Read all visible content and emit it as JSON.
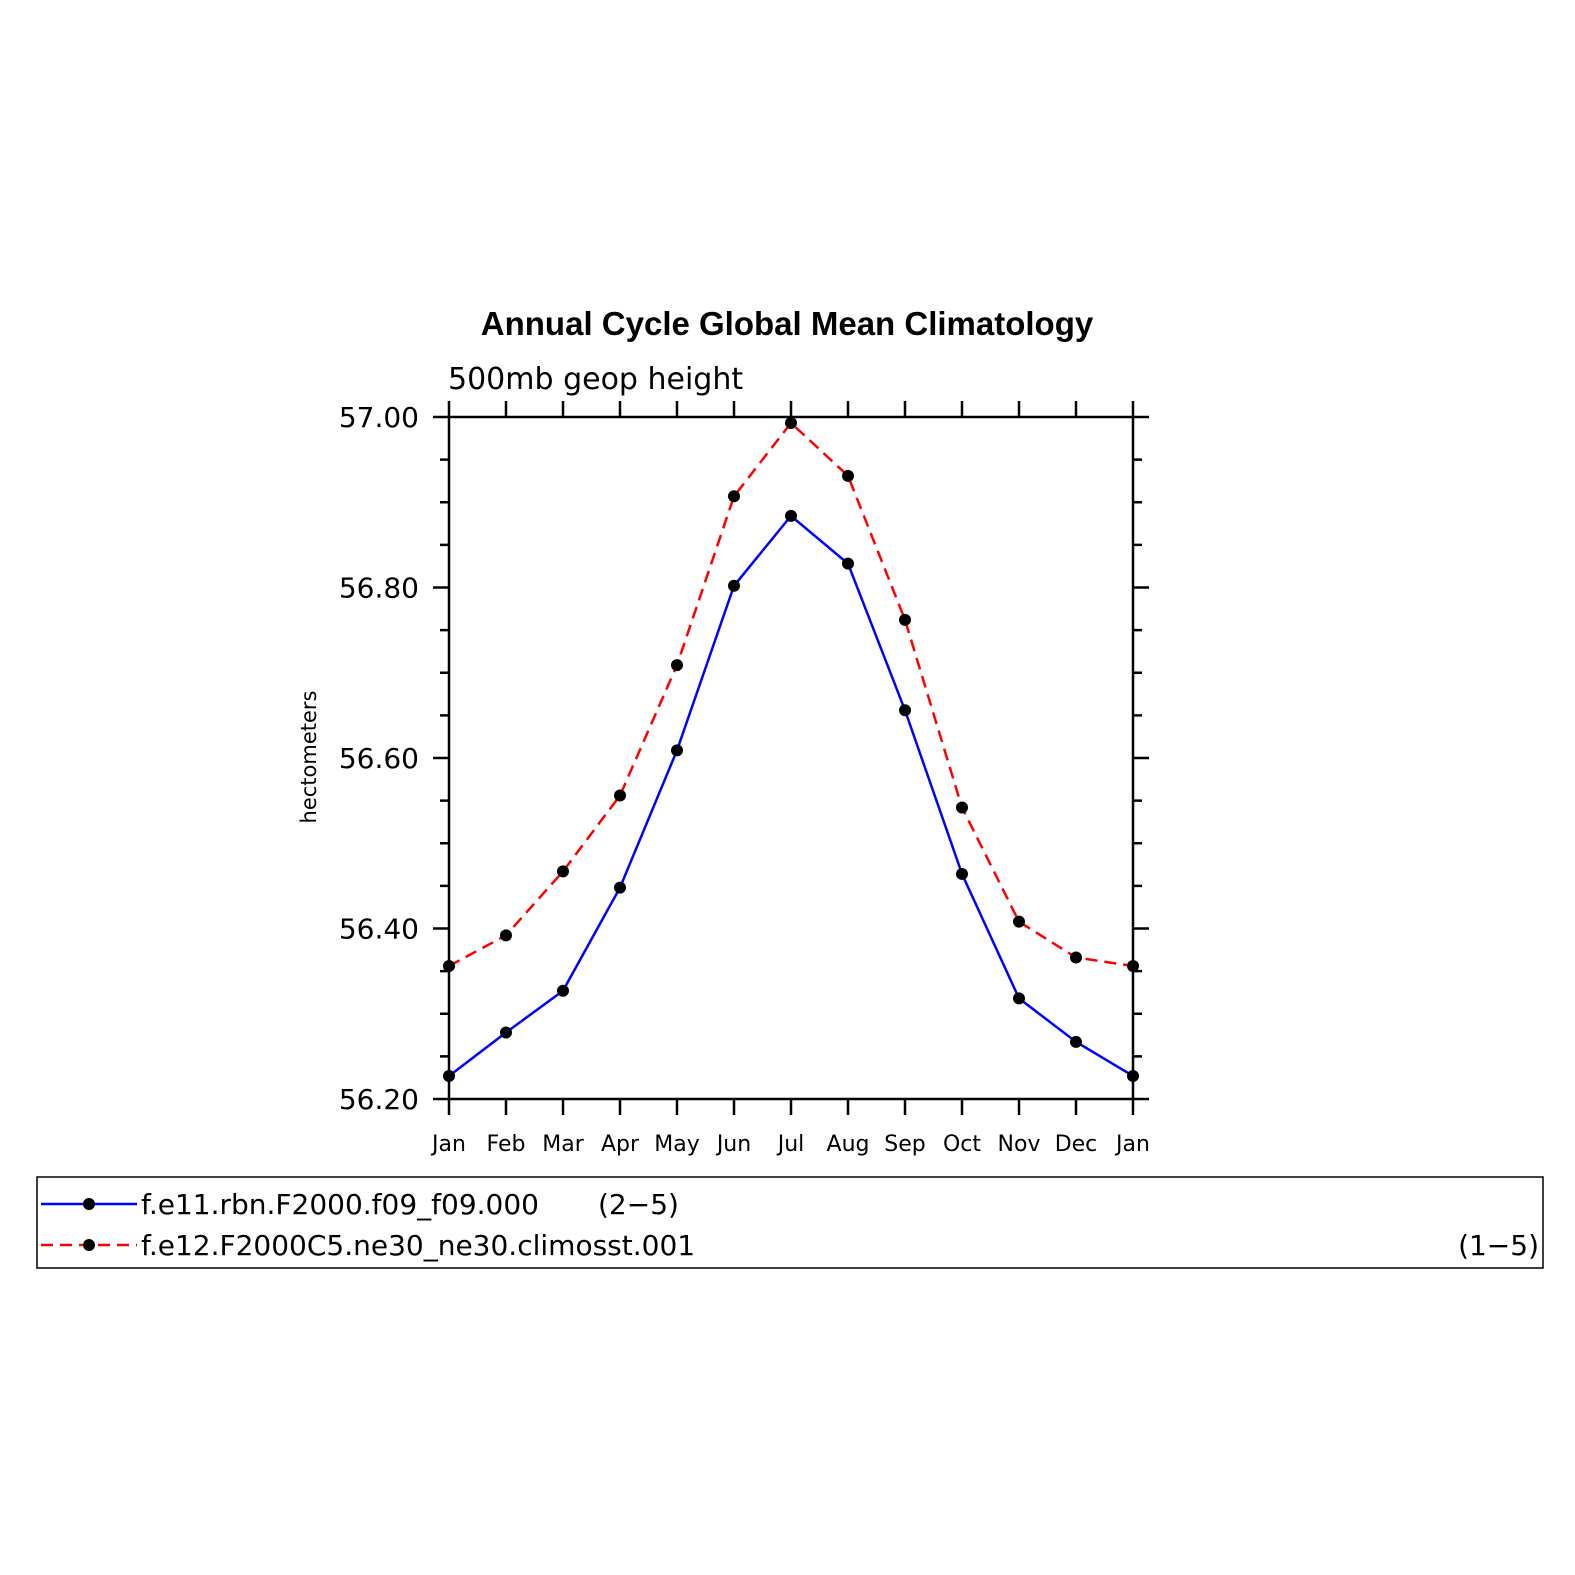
{
  "chart_data": {
    "type": "line",
    "title": "Annual Cycle Global Mean Climatology",
    "subtitle": "500mb geop height",
    "ylabel": "hectometers",
    "xlabel": "",
    "categories": [
      "Jan",
      "Feb",
      "Mar",
      "Apr",
      "May",
      "Jun",
      "Jul",
      "Aug",
      "Sep",
      "Oct",
      "Nov",
      "Dec",
      "Jan"
    ],
    "ylim": [
      56.2,
      57.0
    ],
    "yticks": [
      56.2,
      56.4,
      56.6,
      56.8,
      57.0
    ],
    "ytick_labels": [
      "56.20",
      "56.40",
      "56.60",
      "56.80",
      "57.00"
    ],
    "series": [
      {
        "name": "f.e11.rbn.F2000.f09_f09.000",
        "range": "(2−5)",
        "color": "#0000ff",
        "dashed": false,
        "values": [
          56.227,
          56.278,
          56.327,
          56.448,
          56.609,
          56.802,
          56.884,
          56.828,
          56.656,
          56.464,
          56.318,
          56.267,
          56.227
        ]
      },
      {
        "name": "f.e12.F2000C5.ne30_ne30.climosst.001",
        "range": "(1−5)",
        "color": "#ff0000",
        "dashed": true,
        "values": [
          56.356,
          56.392,
          56.467,
          56.556,
          56.709,
          56.907,
          56.993,
          56.931,
          56.762,
          56.542,
          56.408,
          56.366,
          56.356
        ]
      }
    ],
    "marker_color": "#000000",
    "grid": false,
    "legend_position": "bottom"
  }
}
